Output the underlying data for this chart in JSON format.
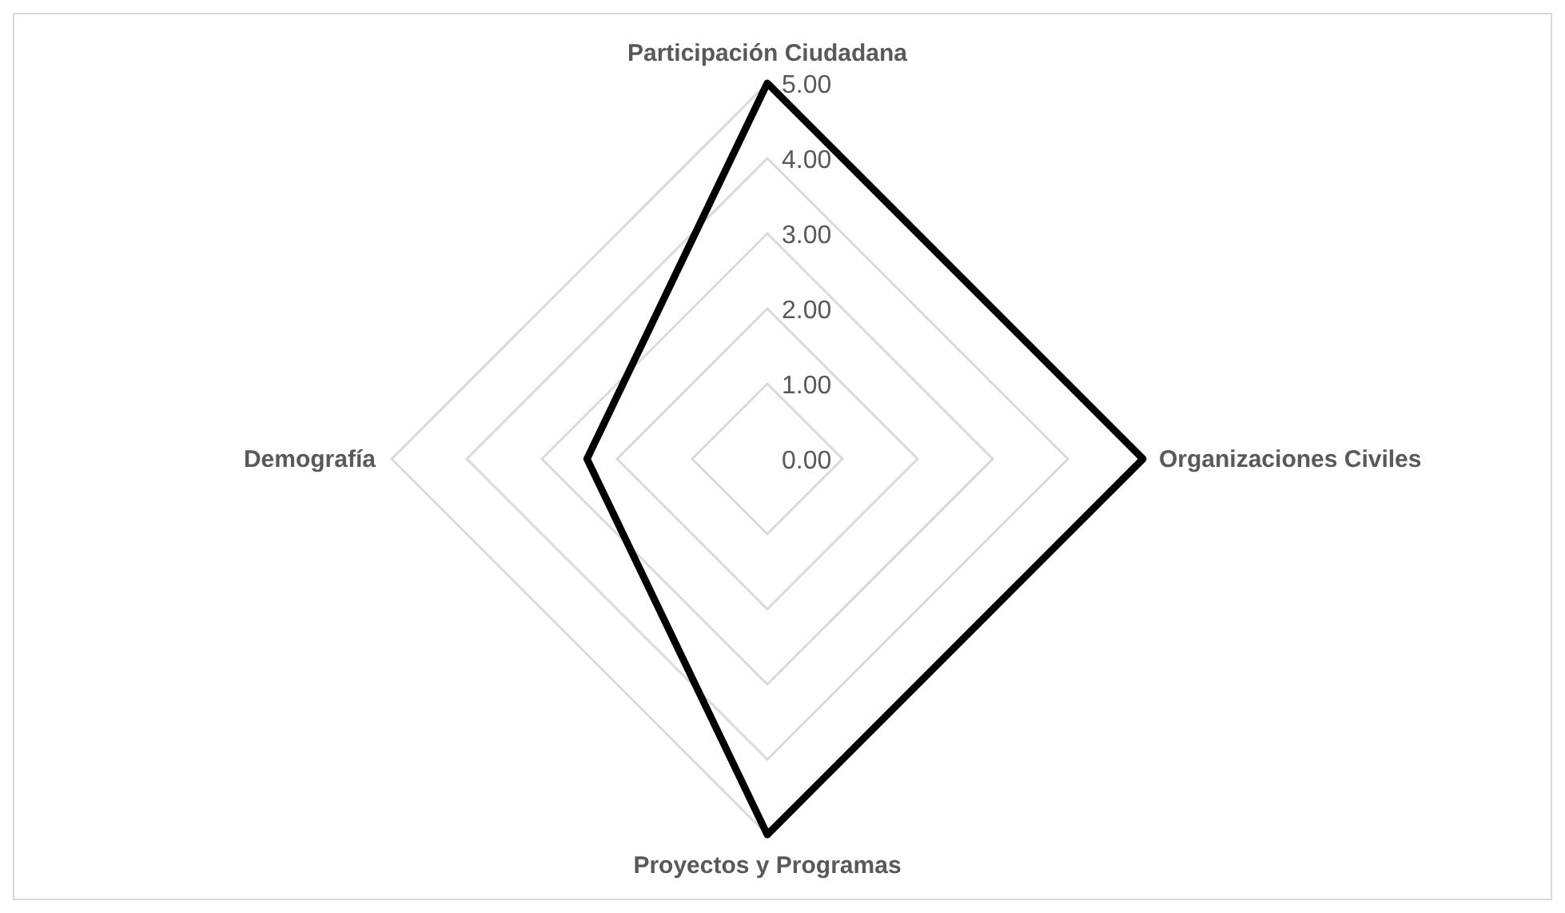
{
  "chart_data": {
    "type": "radar",
    "categories": [
      "Participación Ciudadana",
      "Organizaciones Civiles",
      "Proyectos y Programas",
      "Demografía"
    ],
    "series": [
      {
        "color": "#000000",
        "values": [
          5,
          5,
          5,
          2.4
        ]
      }
    ],
    "ylim": [
      0,
      5
    ],
    "yticks": [
      {
        "value": 0,
        "label": "0.00"
      },
      {
        "value": 1,
        "label": "1.00"
      },
      {
        "value": 2,
        "label": "2.00"
      },
      {
        "value": 3,
        "label": "3.00"
      },
      {
        "value": 4,
        "label": "4.00"
      },
      {
        "value": 5,
        "label": "5.00"
      }
    ],
    "grid": true,
    "marker": "none",
    "line_style": "solid"
  }
}
